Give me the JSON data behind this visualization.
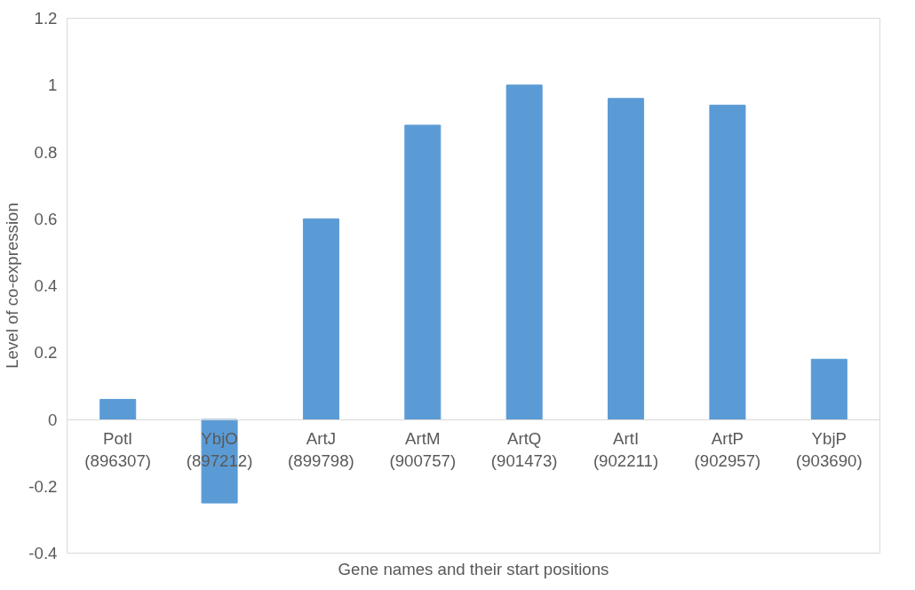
{
  "chart_data": {
    "type": "bar",
    "xlabel": "Gene names and their start positions",
    "ylabel": "Level of co-expression",
    "categories": [
      "PotI\n(896307)",
      "YbjO\n(897212)",
      "ArtJ\n(899798)",
      "ArtM\n(900757)",
      "ArtQ\n(901473)",
      "ArtI\n(902211)",
      "ArtP\n(902957)",
      "YbjP\n(903690)"
    ],
    "values": [
      0.06,
      -0.25,
      0.6,
      0.88,
      1.0,
      0.96,
      0.94,
      0.18
    ],
    "color": "#5b9bd5",
    "ylim": [
      -0.4,
      1.2
    ],
    "yticks": [
      -0.4,
      -0.2,
      0,
      0.2,
      0.4,
      0.6,
      0.8,
      1,
      1.2
    ],
    "grid": false
  }
}
